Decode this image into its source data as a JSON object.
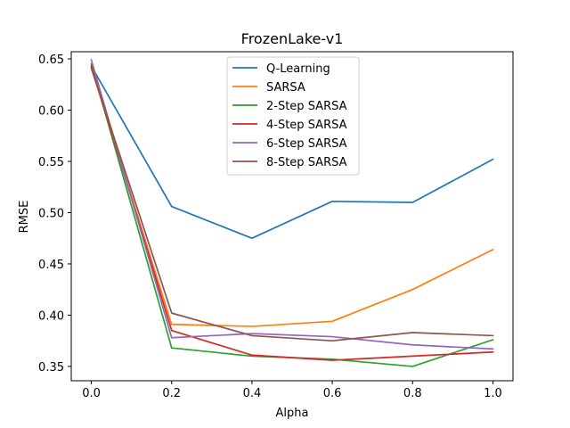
{
  "chart_data": {
    "type": "line",
    "title": "FrozenLake-v1",
    "xlabel": "Alpha",
    "ylabel": "RMSE",
    "x": [
      0.0,
      0.2,
      0.4,
      0.6,
      0.8,
      1.0
    ],
    "xlim": [
      -0.05,
      1.05
    ],
    "ylim": [
      0.336,
      0.657
    ],
    "xticks": [
      0.0,
      0.2,
      0.4,
      0.6,
      0.8,
      1.0
    ],
    "xtick_labels": [
      "0.0",
      "0.2",
      "0.4",
      "0.6",
      "0.8",
      "1.0"
    ],
    "yticks": [
      0.35,
      0.4,
      0.45,
      0.5,
      0.55,
      0.6,
      0.65
    ],
    "ytick_labels": [
      "0.35",
      "0.40",
      "0.45",
      "0.50",
      "0.55",
      "0.60",
      "0.65"
    ],
    "grid": false,
    "legend_position": "top-center",
    "series": [
      {
        "name": "Q-Learning",
        "color": "#1f77b4",
        "values": [
          0.643,
          0.506,
          0.475,
          0.511,
          0.51,
          0.552
        ]
      },
      {
        "name": "SARSA",
        "color": "#ff7f0e",
        "values": [
          0.641,
          0.391,
          0.389,
          0.394,
          0.425,
          0.464
        ]
      },
      {
        "name": "2-Step SARSA",
        "color": "#2ca02c",
        "values": [
          0.645,
          0.368,
          0.36,
          0.357,
          0.35,
          0.376
        ]
      },
      {
        "name": "4-Step SARSA",
        "color": "#d62728",
        "values": [
          0.643,
          0.385,
          0.361,
          0.356,
          0.36,
          0.364
        ]
      },
      {
        "name": "6-Step SARSA",
        "color": "#9467bd",
        "values": [
          0.649,
          0.378,
          0.382,
          0.379,
          0.371,
          0.367
        ]
      },
      {
        "name": "8-Step SARSA",
        "color": "#8c564b",
        "values": [
          0.641,
          0.402,
          0.38,
          0.375,
          0.383,
          0.38
        ]
      }
    ]
  }
}
